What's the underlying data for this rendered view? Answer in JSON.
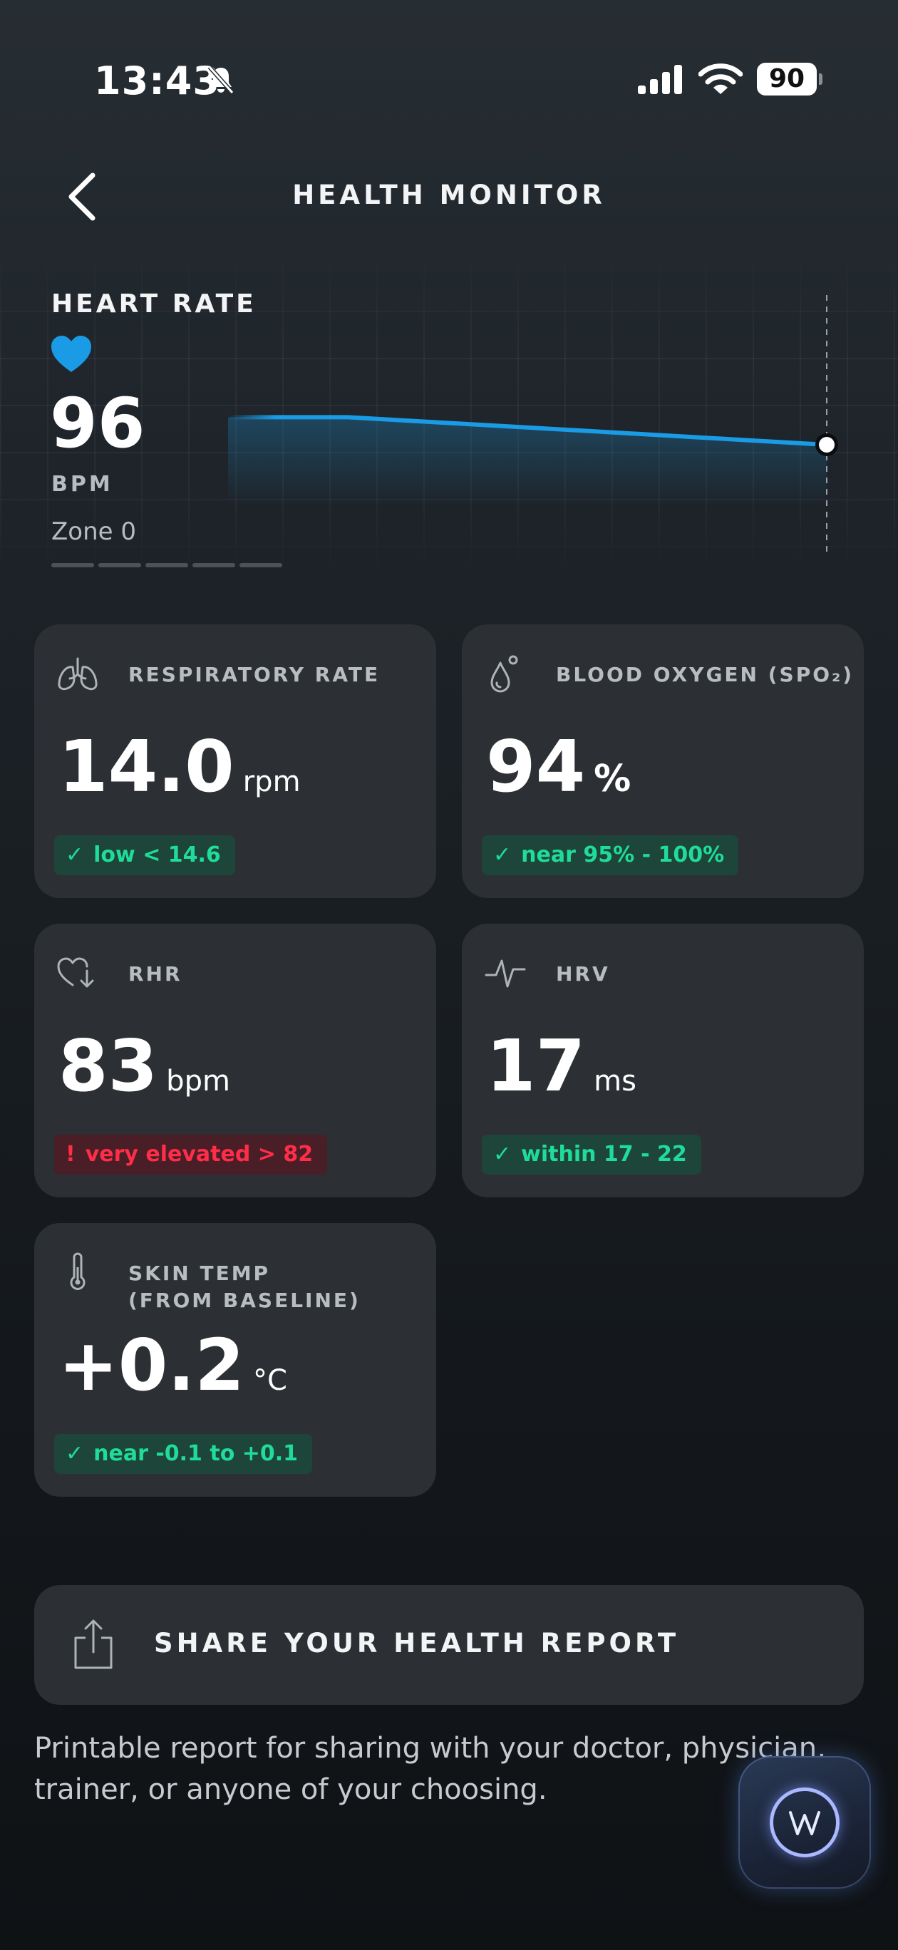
{
  "status_bar": {
    "time": "13:43",
    "battery": "90"
  },
  "header": {
    "title": "HEALTH MONITOR"
  },
  "heart_rate": {
    "label": "HEART RATE",
    "value": "96",
    "unit": "BPM",
    "zone": "Zone 0",
    "accent": "#1a9be6",
    "trend": [
      98,
      98,
      97.5,
      97,
      96.5,
      96
    ]
  },
  "cards": [
    {
      "title": "RESPIRATORY RATE",
      "value": "14.0",
      "unit": "rpm",
      "badge_mark": "✓",
      "badge": "low < 14.6",
      "status": "ok",
      "icon": "lungs-icon"
    },
    {
      "title": "BLOOD OXYGEN (SPO₂)",
      "value": "94",
      "unit": "%",
      "badge_mark": "✓",
      "badge": "near 95% - 100%",
      "status": "ok",
      "icon": "droplet-icon"
    },
    {
      "title": "RHR",
      "value": "83",
      "unit": "bpm",
      "badge_mark": "!",
      "badge": "very elevated > 82",
      "status": "bad",
      "icon": "heart-down-icon"
    },
    {
      "title": "HRV",
      "value": "17",
      "unit": "ms",
      "badge_mark": "✓",
      "badge": "within 17 - 22",
      "status": "ok",
      "icon": "pulse-icon"
    },
    {
      "title_line1": "SKIN TEMP",
      "title_line2": "(FROM BASELINE)",
      "value": "+0.2",
      "unit": "°C",
      "badge_mark": "✓",
      "badge": "near -0.1 to +0.1",
      "status": "ok",
      "icon": "thermometer-icon"
    }
  ],
  "share": {
    "label": "SHARE YOUR HEALTH REPORT",
    "description": "Printable report for sharing with your doctor, physician, trainer, or anyone of your choosing."
  },
  "colors": {
    "ok_text": "#1fdc9a",
    "ok_bg": "#1e4539",
    "bad_text": "#ff2d47",
    "bad_bg": "#4a1e26",
    "card_bg": "#2c3034"
  }
}
